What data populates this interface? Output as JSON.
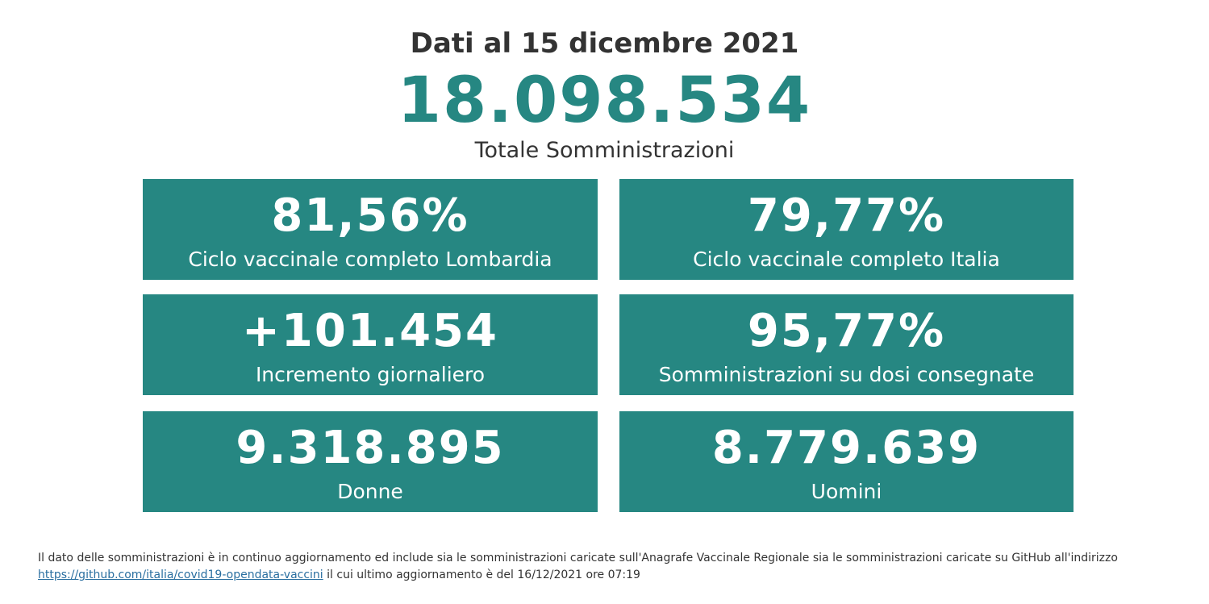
{
  "header": {
    "date_title": "Dati al 15 dicembre 2021",
    "total_value": "18.098.534",
    "total_label": "Totale Somministrazioni"
  },
  "tiles": [
    {
      "value": "81,56%",
      "label": "Ciclo vaccinale completo Lombardia"
    },
    {
      "value": "79,77%",
      "label": "Ciclo vaccinale completo Italia"
    },
    {
      "value": "+101.454",
      "label": "Incremento giornaliero"
    },
    {
      "value": "95,77%",
      "label": "Somministrazioni su dosi consegnate"
    },
    {
      "value": "9.318.895",
      "label": "Donne"
    },
    {
      "value": "8.779.639",
      "label": "Uomini"
    }
  ],
  "footnote": {
    "text_before": "Il dato delle somministrazioni è in continuo aggiornamento ed include sia le somministrazioni caricate sull'Anagrafe Vaccinale Regionale sia le somministrazioni caricate su GitHub all'indirizzo",
    "link_text": "https://github.com/italia/covid19-opendata-vaccini",
    "text_after": " il cui ultimo aggiornamento è del 16/12/2021 ore 07:19"
  },
  "colors": {
    "accent": "#268782",
    "text": "#333333",
    "link": "#2a6fa0"
  }
}
